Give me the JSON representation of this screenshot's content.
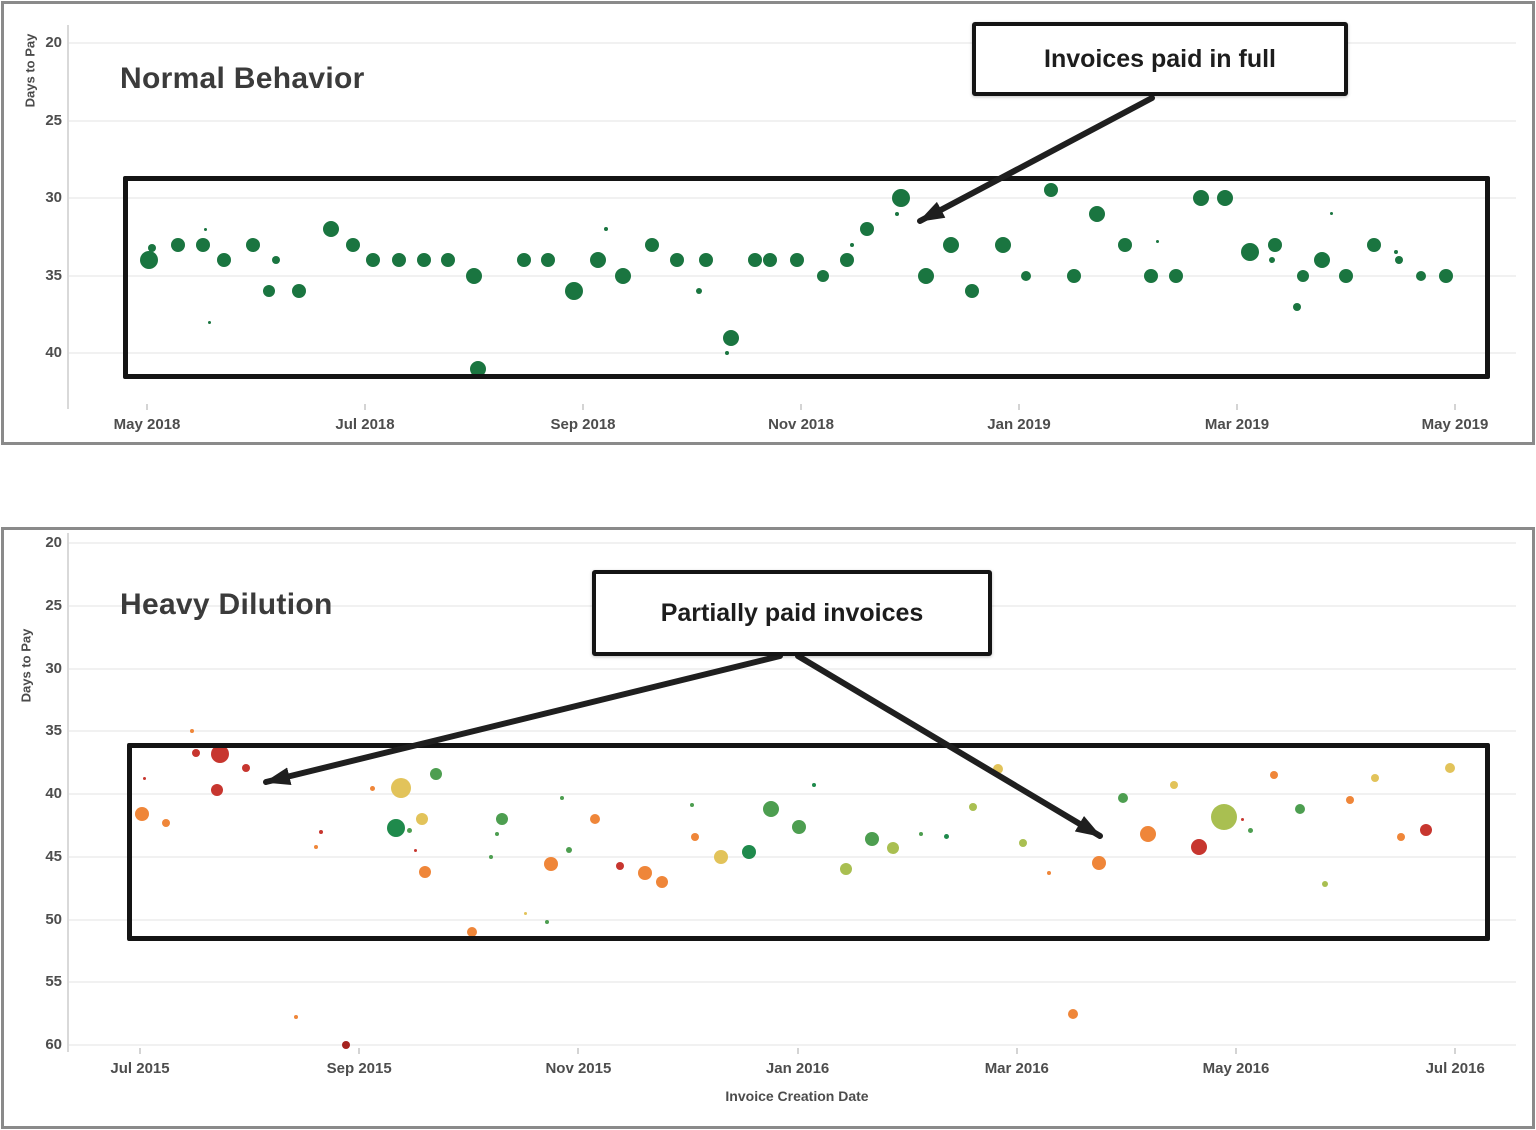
{
  "panels": [
    {
      "title": "Normal Behavior"
    },
    {
      "title": "Heavy Dilution"
    }
  ],
  "colors": {
    "panel_border": "#8a8a8a",
    "highlight_rect": "#141414",
    "arrow": "#1f1f1f",
    "normal_dot_green": "#1a7540"
  },
  "chart_data": [
    {
      "type": "scatter",
      "title": "Normal Behavior",
      "xlabel": "",
      "ylabel": "Days to Pay",
      "y_axis_inverted": true,
      "y_ticks": [
        20,
        25,
        30,
        35,
        40
      ],
      "x_ticks": [
        "May 2018",
        "Jul 2018",
        "Sep 2018",
        "Nov 2018",
        "Jan 2019",
        "Mar 2019",
        "May 2019"
      ],
      "ylim": [
        20,
        42
      ],
      "grid": "horizontal",
      "annotation": {
        "label": "Invoices paid in full"
      },
      "point_format": "[months_since_May_2018, days_to_pay, radius_px]",
      "series": [
        {
          "name": "Invoices paid in full",
          "color": "#1a7540",
          "points": [
            [
              0.02,
              34,
              9
            ],
            [
              0.05,
              33.2,
              4
            ],
            [
              0.28,
              33,
              7
            ],
            [
              0.51,
              33,
              7
            ],
            [
              0.54,
              32,
              1.5
            ],
            [
              0.57,
              38,
              1.5
            ],
            [
              0.71,
              34,
              7
            ],
            [
              0.97,
              33,
              7
            ],
            [
              1.12,
              36,
              6
            ],
            [
              1.18,
              34,
              4
            ],
            [
              1.39,
              36,
              7
            ],
            [
              1.69,
              32,
              8
            ],
            [
              1.89,
              33,
              7
            ],
            [
              2.07,
              34,
              7
            ],
            [
              2.31,
              34,
              7
            ],
            [
              2.54,
              34,
              7
            ],
            [
              2.76,
              34,
              7
            ],
            [
              3.0,
              35,
              8
            ],
            [
              3.04,
              41,
              8
            ],
            [
              3.46,
              34,
              7
            ],
            [
              3.68,
              34,
              7
            ],
            [
              3.92,
              36,
              9
            ],
            [
              4.14,
              34,
              8
            ],
            [
              4.21,
              32,
              2
            ],
            [
              4.37,
              35,
              8
            ],
            [
              4.63,
              33,
              7
            ],
            [
              4.86,
              34,
              7
            ],
            [
              5.06,
              36,
              3
            ],
            [
              5.13,
              34,
              7
            ],
            [
              5.32,
              40,
              2
            ],
            [
              5.36,
              39,
              8
            ],
            [
              5.58,
              34,
              7
            ],
            [
              5.72,
              34,
              7
            ],
            [
              5.96,
              34,
              7
            ],
            [
              6.2,
              35,
              6
            ],
            [
              6.42,
              34,
              7
            ],
            [
              6.47,
              33,
              2
            ],
            [
              6.61,
              32,
              7
            ],
            [
              6.88,
              31,
              2
            ],
            [
              6.92,
              30,
              9
            ],
            [
              7.15,
              35,
              8
            ],
            [
              7.38,
              33,
              8
            ],
            [
              7.57,
              36,
              7
            ],
            [
              7.85,
              33,
              8
            ],
            [
              8.06,
              35,
              5
            ],
            [
              8.29,
              29.5,
              7
            ],
            [
              8.5,
              35,
              7
            ],
            [
              8.72,
              31,
              8
            ],
            [
              8.97,
              33,
              7
            ],
            [
              9.21,
              35,
              7
            ],
            [
              9.27,
              32.8,
              1.5
            ],
            [
              9.44,
              35,
              7
            ],
            [
              9.67,
              30,
              8
            ],
            [
              9.89,
              30,
              8
            ],
            [
              10.12,
              33.5,
              9
            ],
            [
              10.32,
              34,
              3
            ],
            [
              10.35,
              33,
              7
            ],
            [
              10.55,
              37,
              4
            ],
            [
              10.61,
              35,
              6
            ],
            [
              10.78,
              34,
              8
            ],
            [
              10.87,
              31,
              1.5
            ],
            [
              11.0,
              35,
              7
            ],
            [
              11.26,
              33,
              7
            ],
            [
              11.46,
              33.5,
              2
            ],
            [
              11.49,
              34,
              4
            ],
            [
              11.69,
              35,
              5
            ],
            [
              11.92,
              35,
              7
            ]
          ]
        }
      ]
    },
    {
      "type": "scatter",
      "title": "Heavy Dilution",
      "xlabel": "Invoice Creation Date",
      "ylabel": "Days to Pay",
      "y_axis_inverted": true,
      "y_ticks": [
        20,
        25,
        30,
        35,
        40,
        45,
        50,
        55,
        60
      ],
      "x_ticks": [
        "Jul 2015",
        "Sep 2015",
        "Nov 2015",
        "Jan 2016",
        "Mar 2016",
        "May 2016",
        "Jul 2016"
      ],
      "ylim": [
        20,
        61
      ],
      "grid": "horizontal",
      "annotation": {
        "label": "Partially paid invoices"
      },
      "palette": {
        "r": "#c7362f",
        "dr": "#a5231f",
        "o": "#ef8639",
        "y": "#e2c35a",
        "ol": "#a9bf51",
        "g": "#4d9e50",
        "dg": "#1f8a4c"
      },
      "point_format": "[months_since_Jul_2015, days_to_pay, radius_px, color_key]",
      "series": [
        {
          "name": "Partially paid invoices",
          "color": "#ef8639",
          "points": [
            [
              0.02,
              41.6,
              7,
              "o"
            ],
            [
              0.04,
              38.8,
              1.5,
              "r"
            ],
            [
              0.24,
              42.3,
              4,
              "o"
            ],
            [
              0.47,
              35,
              2,
              "o"
            ],
            [
              0.51,
              36.7,
              4,
              "r"
            ],
            [
              0.7,
              39.7,
              6,
              "r"
            ],
            [
              0.73,
              36.8,
              9,
              "r"
            ],
            [
              0.97,
              37.9,
              4,
              "r"
            ],
            [
              1.42,
              57.8,
              2,
              "o"
            ],
            [
              1.61,
              44.2,
              2,
              "o"
            ],
            [
              1.65,
              43,
              2,
              "r"
            ],
            [
              1.88,
              60,
              4,
              "dr"
            ],
            [
              2.12,
              39.6,
              2.5,
              "o"
            ],
            [
              2.34,
              42.7,
              9,
              "dg"
            ],
            [
              2.38,
              39.5,
              10,
              "y"
            ],
            [
              2.46,
              42.9,
              2.5,
              "g"
            ],
            [
              2.51,
              44.5,
              1.5,
              "r"
            ],
            [
              2.57,
              42,
              6,
              "y"
            ],
            [
              2.6,
              46.2,
              6,
              "o"
            ],
            [
              2.7,
              38.4,
              6,
              "g"
            ],
            [
              3.03,
              51,
              5,
              "o"
            ],
            [
              3.2,
              45,
              2,
              "g"
            ],
            [
              3.26,
              43.2,
              2,
              "g"
            ],
            [
              3.3,
              42,
              6,
              "g"
            ],
            [
              3.52,
              49.5,
              1.5,
              "y"
            ],
            [
              3.71,
              50.2,
              2,
              "g"
            ],
            [
              3.75,
              45.6,
              7,
              "o"
            ],
            [
              3.85,
              40.3,
              2,
              "g"
            ],
            [
              3.91,
              44.5,
              3,
              "g"
            ],
            [
              4.15,
              42,
              5,
              "o"
            ],
            [
              4.38,
              45.7,
              4,
              "r"
            ],
            [
              4.61,
              46.3,
              7,
              "o"
            ],
            [
              4.76,
              47,
              6,
              "o"
            ],
            [
              5.04,
              40.9,
              2,
              "g"
            ],
            [
              5.06,
              43.4,
              4,
              "o"
            ],
            [
              5.3,
              45,
              7,
              "y"
            ],
            [
              5.56,
              44.6,
              7,
              "dg"
            ],
            [
              5.76,
              41.2,
              8,
              "g"
            ],
            [
              6.01,
              42.6,
              7,
              "g"
            ],
            [
              6.15,
              39.3,
              2,
              "dg"
            ],
            [
              6.44,
              46,
              6,
              "ol"
            ],
            [
              6.68,
              43.6,
              7,
              "g"
            ],
            [
              6.87,
              44.3,
              6,
              "ol"
            ],
            [
              7.13,
              43.2,
              2,
              "g"
            ],
            [
              7.36,
              43.4,
              2.5,
              "dg"
            ],
            [
              7.6,
              41,
              4,
              "ol"
            ],
            [
              7.83,
              38,
              5,
              "y"
            ],
            [
              8.06,
              43.9,
              4,
              "ol"
            ],
            [
              8.29,
              46.3,
              2,
              "o"
            ],
            [
              8.51,
              57.5,
              5,
              "o"
            ],
            [
              8.75,
              45.5,
              7,
              "o"
            ],
            [
              8.97,
              40.3,
              5,
              "g"
            ],
            [
              9.2,
              43.2,
              8,
              "o"
            ],
            [
              9.43,
              39.3,
              4,
              "y"
            ],
            [
              9.66,
              44.2,
              8,
              "r"
            ],
            [
              9.89,
              41.8,
              13,
              "ol"
            ],
            [
              10.06,
              42,
              1.5,
              "r"
            ],
            [
              10.13,
              42.9,
              2.5,
              "g"
            ],
            [
              10.35,
              38.5,
              4,
              "o"
            ],
            [
              10.58,
              41.2,
              5,
              "g"
            ],
            [
              10.81,
              47.2,
              3,
              "ol"
            ],
            [
              11.04,
              40.5,
              4,
              "o"
            ],
            [
              11.27,
              38.7,
              4,
              "y"
            ],
            [
              11.51,
              43.4,
              4,
              "o"
            ],
            [
              11.73,
              42.9,
              6,
              "r"
            ],
            [
              11.95,
              37.9,
              5,
              "y"
            ]
          ]
        }
      ]
    }
  ]
}
